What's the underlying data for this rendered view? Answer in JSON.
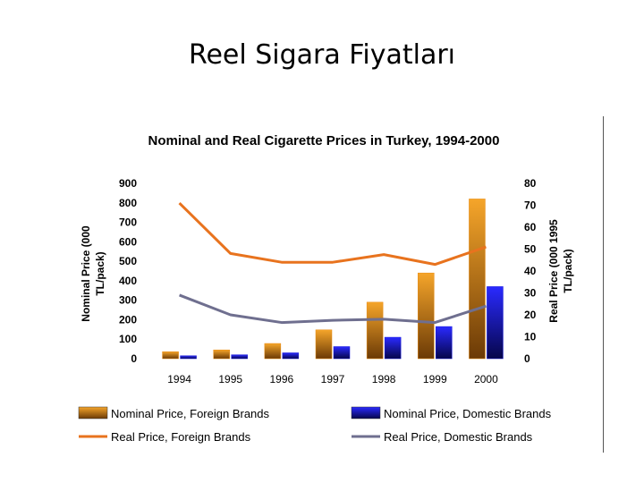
{
  "slide": {
    "title": "Reel Sigara Fiyatları"
  },
  "colors": {
    "foreign_bar": "#e8890f",
    "domestic_bar": "#1616d8",
    "foreign_line": "#e8731e",
    "domestic_line": "#6f6f8f"
  },
  "chart_data": {
    "type": "bar",
    "title": "Nominal and Real Cigarette Prices in Turkey, 1994-2000",
    "categories": [
      "1994",
      "1995",
      "1996",
      "1997",
      "1998",
      "1999",
      "2000"
    ],
    "y_left": {
      "label": "Nominal Price (000 TL/pack)",
      "range": [
        0,
        900
      ],
      "ticks": [
        "0",
        "100",
        "200",
        "300",
        "400",
        "500",
        "600",
        "700",
        "800",
        "900"
      ]
    },
    "y_right": {
      "label": "Real Price (000 1995 TL/pack)",
      "range": [
        0,
        80
      ],
      "ticks": [
        "0",
        "10",
        "20",
        "30",
        "40",
        "50",
        "60",
        "70",
        "80"
      ]
    },
    "series": [
      {
        "name": "Nominal Price, Foreign Brands",
        "kind": "bar",
        "axis": "left",
        "color": "#e8890f",
        "values": [
          36,
          45,
          78,
          148,
          290,
          440,
          820
        ]
      },
      {
        "name": "Nominal Price, Domestic Brands",
        "kind": "bar",
        "axis": "left",
        "color": "#1616d8",
        "values": [
          15,
          20,
          30,
          62,
          110,
          165,
          370
        ]
      },
      {
        "name": "Real Price, Foreign Brands",
        "kind": "line",
        "axis": "right",
        "color": "#e8731e",
        "values": [
          71,
          48,
          44,
          44,
          47.5,
          43,
          51
        ]
      },
      {
        "name": "Real Price, Domestic Brands",
        "kind": "line",
        "axis": "right",
        "color": "#6f6f8f",
        "values": [
          29,
          20,
          16.5,
          17.5,
          18,
          16.5,
          24
        ]
      }
    ],
    "legend": {
      "placement": "bottom",
      "columns": 2,
      "order": [
        0,
        1,
        2,
        3
      ]
    },
    "grid": false
  }
}
